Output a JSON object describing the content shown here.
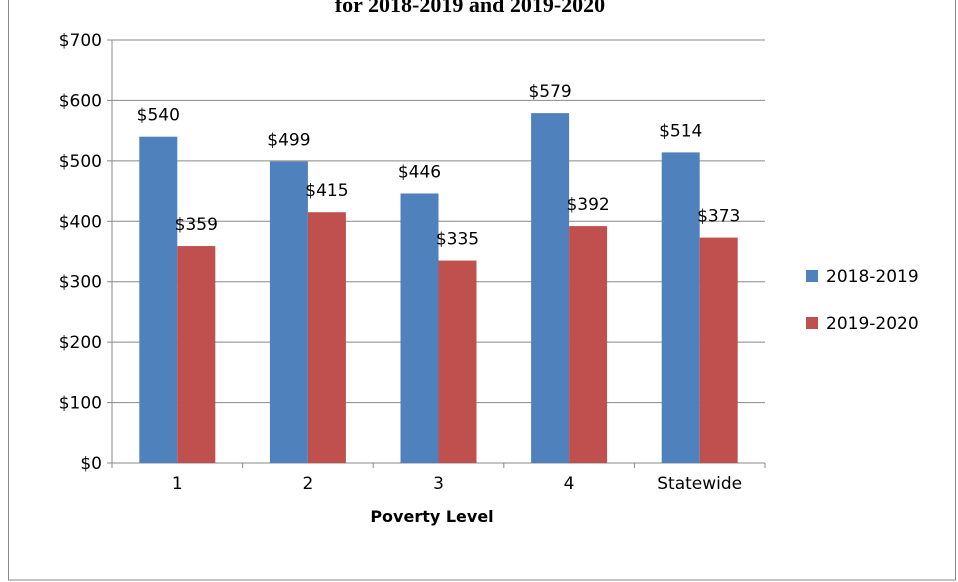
{
  "chart_data": {
    "type": "bar",
    "title": "for 2018-2019 and 2019-2020",
    "x_label": "Poverty Level",
    "categories": [
      "1",
      "2",
      "3",
      "4",
      "Statewide"
    ],
    "series": [
      {
        "name": "2018-2019",
        "color": "#4f81bd",
        "values": [
          540,
          499,
          446,
          579,
          514
        ],
        "value_labels": [
          "$540",
          "$499",
          "$446",
          "$579",
          "$514"
        ]
      },
      {
        "name": "2019-2020",
        "color": "#c0504d",
        "values": [
          359,
          415,
          335,
          392,
          373
        ],
        "value_labels": [
          "$359",
          "$415",
          "$335",
          "$392",
          "$373"
        ]
      }
    ],
    "ylim": [
      0,
      700
    ],
    "yticks": [
      {
        "value": 0,
        "label": "$0"
      },
      {
        "value": 100,
        "label": "$100"
      },
      {
        "value": 200,
        "label": "$200"
      },
      {
        "value": 300,
        "label": "$300"
      },
      {
        "value": 400,
        "label": "$400"
      },
      {
        "value": 500,
        "label": "$500"
      },
      {
        "value": 600,
        "label": "$600"
      },
      {
        "value": 700,
        "label": "$700"
      }
    ],
    "grid": true,
    "legend": "right"
  }
}
